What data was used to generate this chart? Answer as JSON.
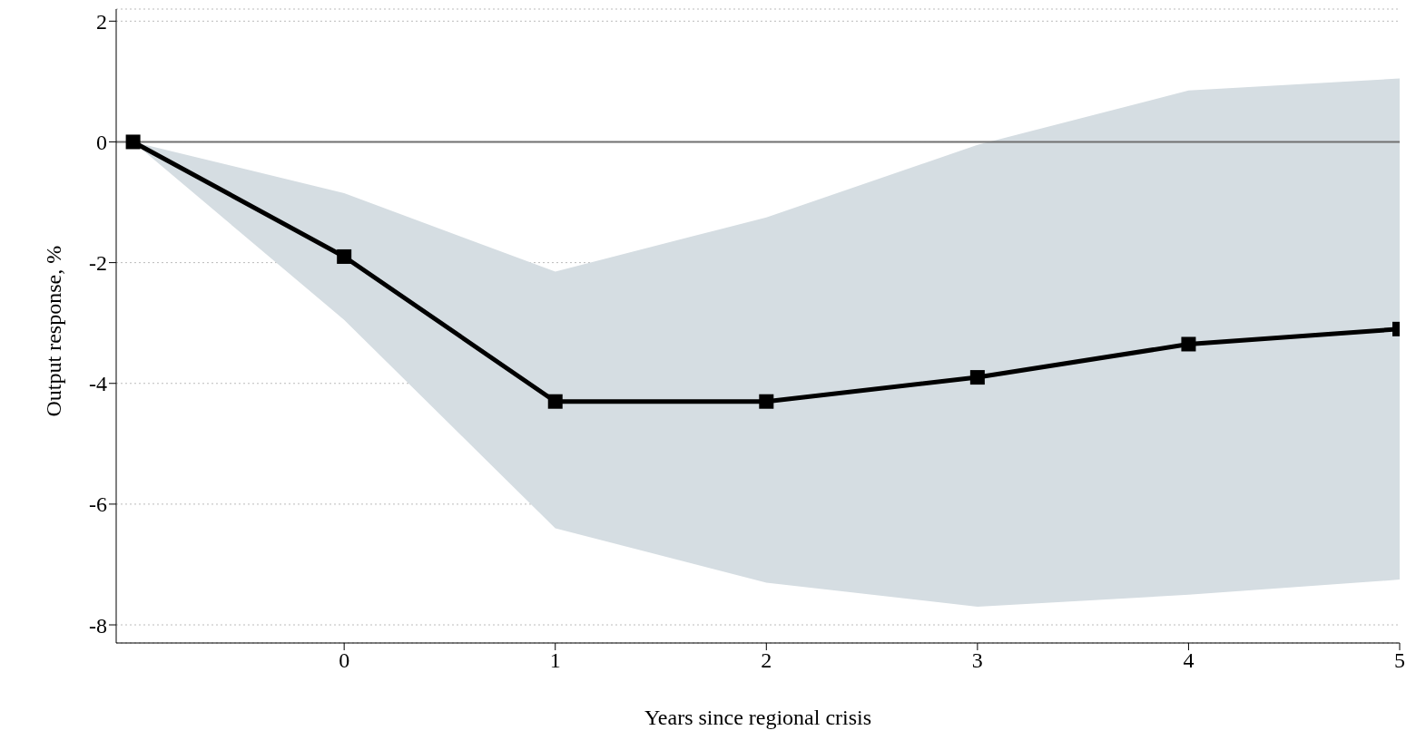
{
  "chart_data": {
    "type": "line",
    "xlabel": "Years since regional crisis",
    "ylabel": "Output response, %",
    "x": [
      -1,
      0,
      1,
      2,
      3,
      4,
      5
    ],
    "series": [
      {
        "color": "#000000",
        "values": [
          0,
          -1.9,
          -4.3,
          -4.3,
          -3.9,
          -3.35,
          -3.1
        ],
        "lower": [
          0,
          -2.95,
          -6.4,
          -7.3,
          -7.7,
          -7.5,
          -7.25
        ],
        "upper": [
          0,
          -0.85,
          -2.15,
          -1.25,
          -0.05,
          0.85,
          1.05
        ]
      }
    ],
    "xlim": [
      -1.08,
      5
    ],
    "xticks": [
      0,
      1,
      2,
      3,
      4,
      5
    ],
    "ylim": [
      -8.3,
      2.2
    ],
    "yticks": [
      -8,
      -6,
      -4,
      -2,
      0,
      2
    ],
    "grid": "y",
    "marker": "square",
    "line_style": "solid",
    "ref_lines": [
      {
        "axis": "y",
        "value": 0,
        "color": "#707070"
      }
    ]
  }
}
